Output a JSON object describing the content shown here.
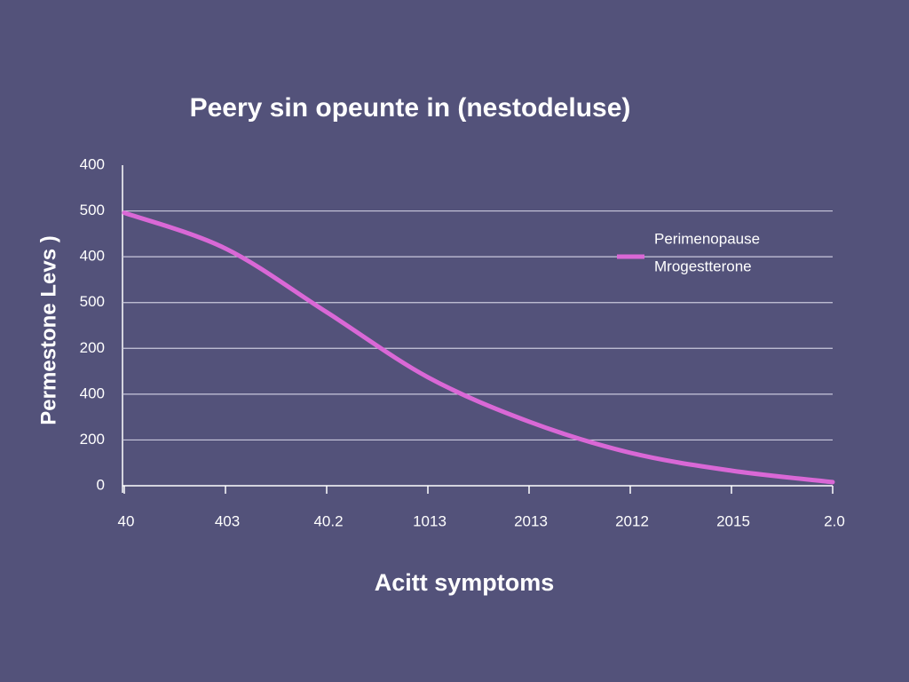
{
  "chart_data": {
    "type": "line",
    "title": "Peery sin opeunte in (nestodeluse)",
    "x_label": "Acitt symptoms",
    "y_label": "Permestone Levs )",
    "categories": [
      "40",
      "403",
      "40.2",
      "1013",
      "2013",
      "2012",
      "2015",
      "2.0"
    ],
    "series": [
      {
        "name": "Perimenopause",
        "color": "#d968d6",
        "values": [
          596,
          518,
          379,
          237,
          140,
          72,
          33,
          8
        ]
      }
    ],
    "legend_note": "Mrogestterone",
    "legend_position": "upper right",
    "ylim": [
      0,
      700
    ],
    "yticks": [
      0,
      {
        "value": 100,
        "label": "200"
      },
      {
        "value": 200,
        "label": "400"
      },
      {
        "value": 300,
        "label": "200"
      },
      {
        "value": 400,
        "label": "500"
      },
      {
        "value": 500,
        "label": "400"
      },
      {
        "value": 600,
        "label": "500"
      },
      {
        "value": 700,
        "label": "400"
      }
    ],
    "grid": true
  }
}
